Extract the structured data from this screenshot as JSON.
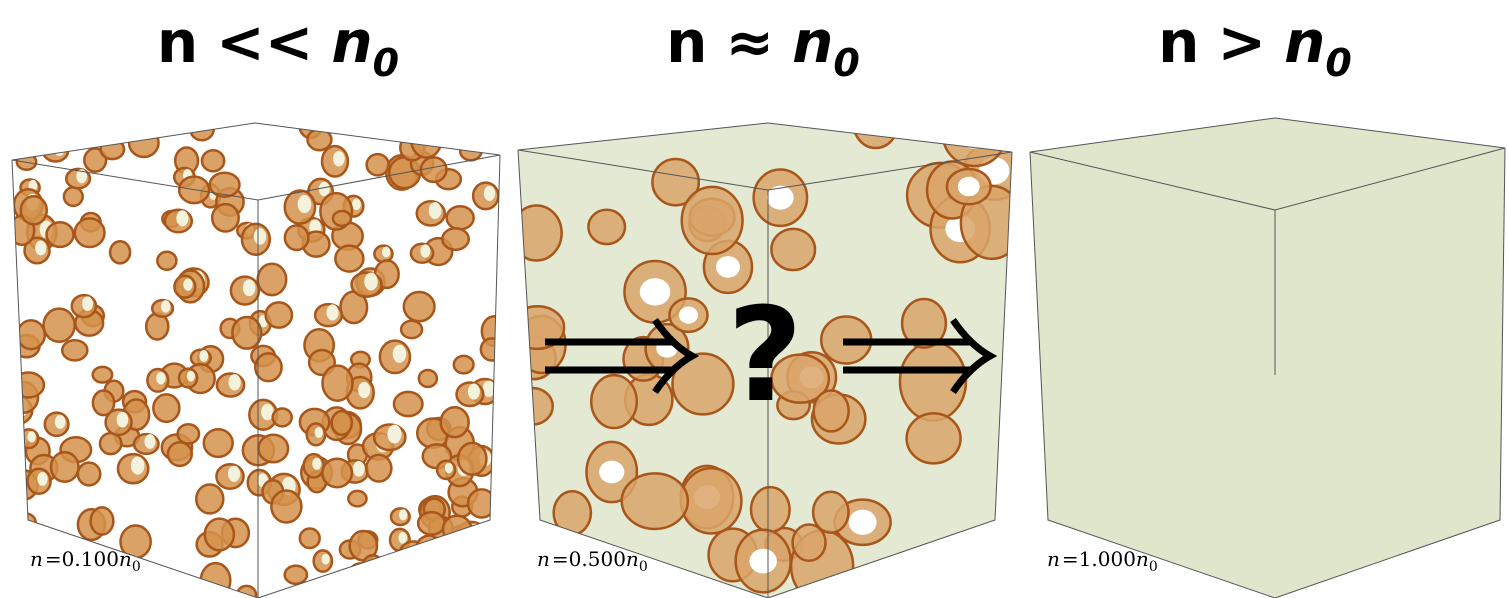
{
  "panels": [
    {
      "heading": {
        "lhs": "n",
        "op": "<<",
        "rhs": "n",
        "sub": "0"
      },
      "caption": {
        "lhs": "n",
        "relation": "=",
        "value": "0.100",
        "rhs": "n",
        "sub": "0"
      }
    },
    {
      "heading": {
        "lhs": "n",
        "op": "≈",
        "rhs": "n",
        "sub": "0"
      },
      "caption": {
        "lhs": "n",
        "relation": "=",
        "value": "0.500",
        "rhs": "n",
        "sub": "0"
      }
    },
    {
      "heading": {
        "lhs": "n",
        "op": ">",
        "rhs": "n",
        "sub": "0"
      },
      "caption": {
        "lhs": "n",
        "relation": "=",
        "value": "1.000",
        "rhs": "n",
        "sub": "0"
      }
    }
  ],
  "question": "?"
}
